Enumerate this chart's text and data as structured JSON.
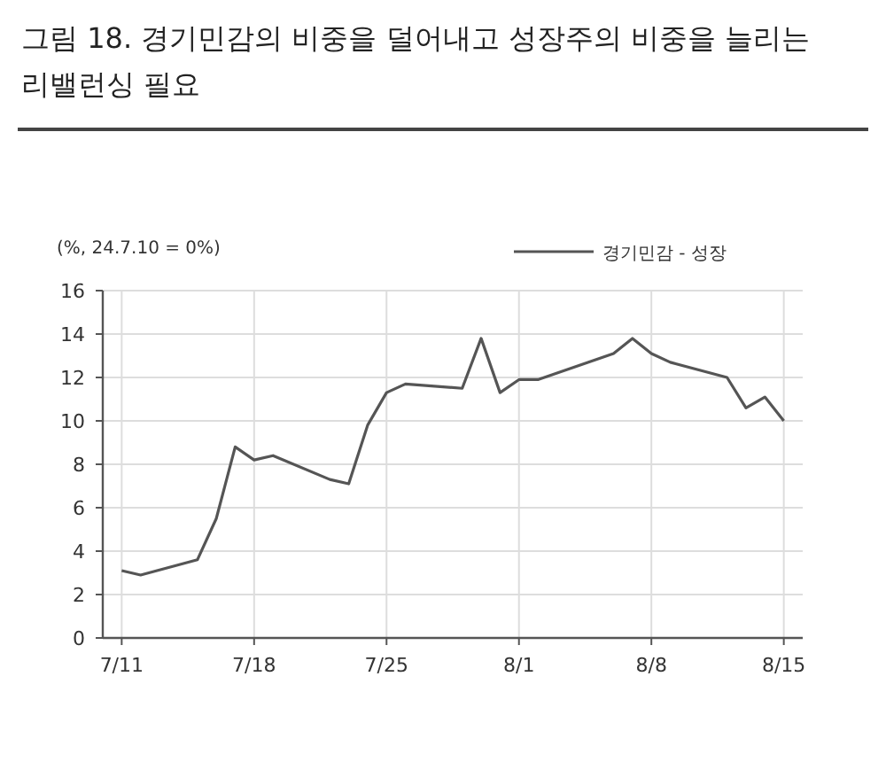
{
  "chart_data": {
    "type": "line",
    "title": "그림 18. 경기민감의 비중을 덜어내고 성장주의 비중을 늘리는 리밸런싱 필요",
    "ylabel": "(%, 24.7.10 = 0%)",
    "x": [
      "--07-11",
      "--07-12",
      "--07-15",
      "--07-16",
      "--07-17",
      "--07-18",
      "--07-19",
      "--07-22",
      "--07-23",
      "--07-24",
      "--07-25",
      "--07-26",
      "--07-29",
      "--07-30",
      "--07-31",
      "--08-01",
      "--08-02",
      "--08-06",
      "--08-07",
      "--08-08",
      "--08-09",
      "--08-12",
      "--08-13",
      "--08-14",
      "--08-15"
    ],
    "series": [
      {
        "name": "경기민감 - 성장",
        "color": "#555555",
        "values": [
          3.1,
          2.9,
          3.6,
          5.5,
          8.8,
          8.2,
          8.4,
          7.3,
          7.1,
          9.8,
          11.3,
          11.7,
          11.5,
          13.8,
          11.3,
          11.9,
          11.9,
          13.1,
          13.8,
          13.1,
          12.7,
          12.0,
          10.6,
          11.1,
          10.0
        ]
      }
    ],
    "xlim": [
      "--07-10",
      "--08-16"
    ],
    "xticks": [
      {
        "value": "--07-11",
        "label": "7/11"
      },
      {
        "value": "--07-18",
        "label": "7/18"
      },
      {
        "value": "--07-25",
        "label": "7/25"
      },
      {
        "value": "--08-01",
        "label": "8/1"
      },
      {
        "value": "--08-08",
        "label": "8/8"
      },
      {
        "value": "--08-15",
        "label": "8/15"
      }
    ],
    "ylim": [
      0,
      16
    ],
    "yticks": [
      0,
      2,
      4,
      6,
      8,
      10,
      12,
      14,
      16
    ],
    "grid": true,
    "legend": "top right",
    "line_style": "solid",
    "marker": "none"
  }
}
